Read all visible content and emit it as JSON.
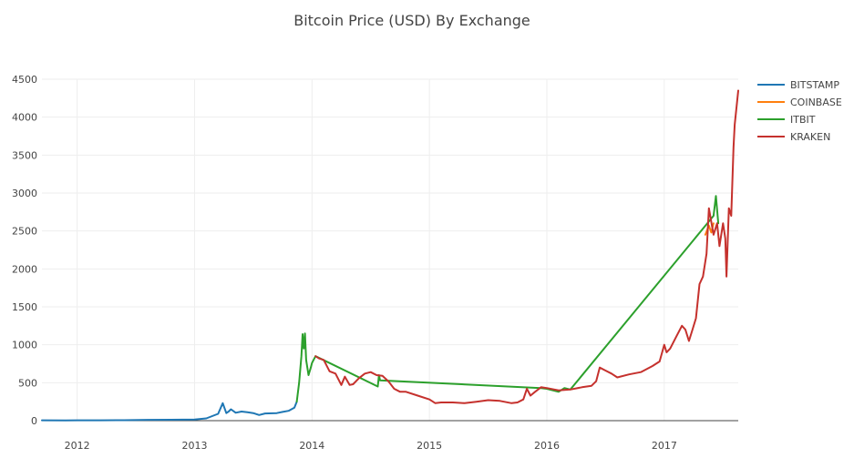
{
  "chart_data": {
    "type": "line",
    "title": "Bitcoin Price (USD) By Exchange",
    "xlabel": "",
    "ylabel": "",
    "xlim": [
      2011.7,
      2017.63
    ],
    "ylim": [
      0,
      4500
    ],
    "x_ticks": [
      2012,
      2013,
      2014,
      2015,
      2016,
      2017
    ],
    "x_tick_labels": [
      "2012",
      "2013",
      "2014",
      "2015",
      "2016",
      "2017"
    ],
    "y_ticks": [
      0,
      500,
      1000,
      1500,
      2000,
      2500,
      3000,
      3500,
      4000,
      4500
    ],
    "y_tick_labels": [
      "0",
      "500",
      "1000",
      "1500",
      "2000",
      "2500",
      "3000",
      "3500",
      "4000",
      "4500"
    ],
    "grid": true,
    "legend_position": "top-right",
    "series": [
      {
        "name": "BITSTAMP",
        "color": "#1f77b4",
        "x": [
          2011.7,
          2011.9,
          2012.0,
          2012.2,
          2012.4,
          2012.6,
          2012.8,
          2013.0,
          2013.1,
          2013.2,
          2013.24,
          2013.27,
          2013.29,
          2013.31,
          2013.35,
          2013.4,
          2013.45,
          2013.5,
          2013.55,
          2013.6,
          2013.7,
          2013.75,
          2013.8,
          2013.85,
          2013.87
        ],
        "y": [
          5,
          3,
          5,
          5,
          6,
          11,
          12,
          14,
          30,
          90,
          230,
          100,
          120,
          150,
          105,
          120,
          110,
          100,
          75,
          95,
          100,
          115,
          130,
          170,
          250
        ]
      },
      {
        "name": "COINBASE",
        "color": "#ff7f0e",
        "x": [
          2017.35,
          2017.38,
          2017.4,
          2017.42
        ],
        "y": [
          2450,
          2570,
          2480,
          2600
        ]
      },
      {
        "name": "ITBIT",
        "color": "#2ca02c",
        "x": [
          2013.87,
          2013.89,
          2013.91,
          2013.92,
          2013.93,
          2013.94,
          2013.95,
          2013.97,
          2013.99,
          2014.0,
          2014.03,
          2014.56,
          2014.57,
          2014.58,
          2015.95,
          2016.0,
          2016.05,
          2016.1,
          2016.15,
          2016.2,
          2017.42,
          2017.44,
          2017.46
        ],
        "y": [
          250,
          500,
          850,
          1140,
          950,
          1150,
          800,
          600,
          700,
          760,
          850,
          450,
          600,
          530,
          430,
          420,
          400,
          380,
          430,
          410,
          2700,
          2960,
          2600
        ]
      },
      {
        "name": "KRAKEN",
        "color": "#c5312d",
        "x": [
          2014.03,
          2014.06,
          2014.1,
          2014.15,
          2014.2,
          2014.25,
          2014.28,
          2014.32,
          2014.35,
          2014.4,
          2014.45,
          2014.5,
          2014.55,
          2014.6,
          2014.65,
          2014.7,
          2014.75,
          2014.8,
          2014.9,
          2015.0,
          2015.05,
          2015.1,
          2015.2,
          2015.3,
          2015.4,
          2015.5,
          2015.6,
          2015.7,
          2015.75,
          2015.8,
          2015.83,
          2015.86,
          2015.9,
          2015.95,
          2016.0,
          2016.1,
          2016.2,
          2016.3,
          2016.38,
          2016.42,
          2016.45,
          2016.5,
          2016.55,
          2016.6,
          2016.7,
          2016.8,
          2016.9,
          2016.96,
          2017.0,
          2017.02,
          2017.05,
          2017.1,
          2017.15,
          2017.18,
          2017.21,
          2017.24,
          2017.27,
          2017.3,
          2017.33,
          2017.36,
          2017.38,
          2017.42,
          2017.45,
          2017.47,
          2017.5,
          2017.52,
          2017.53,
          2017.55,
          2017.57,
          2017.59,
          2017.6,
          2017.62,
          2017.63
        ],
        "y": [
          850,
          820,
          800,
          650,
          620,
          470,
          580,
          470,
          480,
          560,
          620,
          640,
          600,
          590,
          520,
          420,
          380,
          380,
          330,
          280,
          230,
          240,
          240,
          230,
          250,
          270,
          260,
          230,
          240,
          280,
          420,
          330,
          380,
          440,
          430,
          400,
          410,
          440,
          460,
          520,
          700,
          660,
          620,
          570,
          610,
          640,
          720,
          780,
          1000,
          900,
          950,
          1100,
          1250,
          1200,
          1050,
          1200,
          1350,
          1800,
          1900,
          2200,
          2800,
          2450,
          2600,
          2300,
          2600,
          2400,
          1900,
          2800,
          2700,
          3600,
          3900,
          4200,
          4350
        ]
      }
    ]
  }
}
